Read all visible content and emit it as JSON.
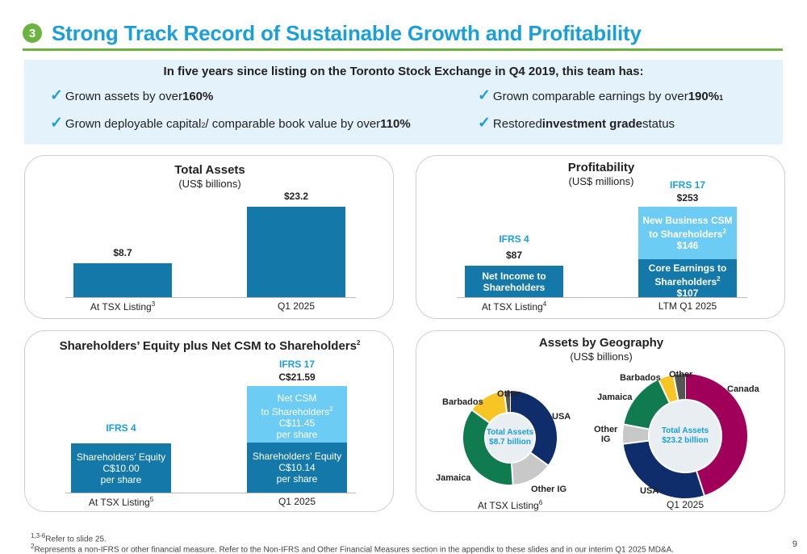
{
  "slide": {
    "number": "3",
    "title": "Strong Track Record of Sustainable Growth and Profitability",
    "page_number": "9"
  },
  "summary": {
    "headline": "In five years since listing on the Toronto Stock Exchange in Q4 2019, this team has:",
    "bullets": [
      {
        "pre": "Grown assets by over ",
        "bold": "160%",
        "post": ""
      },
      {
        "pre": "Grown comparable earnings by over ",
        "bold": "190%",
        "post": "",
        "sup": "1"
      },
      {
        "pre": "Grown deployable capital",
        "sup_mid": "2",
        "mid": " / comparable book value by over ",
        "bold": "110%",
        "post": ""
      },
      {
        "pre": "Restored ",
        "bold": "investment grade",
        "post": " status"
      }
    ]
  },
  "total_assets": {
    "title": "Total Assets",
    "subtitle": "(US$ billions)",
    "chart_data": {
      "type": "bar",
      "categories": [
        "At TSX Listing",
        "Q1 2025"
      ],
      "category_sups": [
        "3",
        ""
      ],
      "values": [
        8.7,
        23.2
      ],
      "value_labels": [
        "$8.7",
        "$23.2"
      ],
      "ylim": [
        0,
        23.2
      ]
    },
    "colors": {
      "bar": "#1479a8"
    }
  },
  "profitability": {
    "title": "Profitability",
    "subtitle": "(US$ millions)",
    "ifrs4_label": "IFRS 4",
    "ifrs17_label": "IFRS 17",
    "chart_data": {
      "type": "bar",
      "stacked": true,
      "categories": [
        "At TSX Listing",
        "LTM Q1 2025"
      ],
      "category_sups": [
        "4",
        ""
      ],
      "totals": [
        87,
        253
      ],
      "total_labels": [
        "$87",
        "$253"
      ],
      "series": [
        {
          "name": "Net Income to Shareholders",
          "values": [
            87,
            null
          ]
        },
        {
          "name": "Core Earnings to Shareholders",
          "sup": "2",
          "values": [
            null,
            107
          ],
          "value_label": "$107"
        },
        {
          "name": "New Business CSM to Shareholders",
          "sup": "2",
          "values": [
            null,
            146
          ],
          "value_label": "$146"
        }
      ],
      "ylim": [
        0,
        253
      ]
    },
    "colors": {
      "dark": "#1479a8",
      "light": "#6dccf4"
    }
  },
  "equity": {
    "title": "Shareholders’ Equity plus Net CSM to Shareholders",
    "title_sup": "2",
    "ifrs4_label": "IFRS 4",
    "ifrs17_label": "IFRS 17",
    "chart_data": {
      "type": "bar",
      "stacked": true,
      "categories": [
        "At TSX Listing",
        "Q1 2025"
      ],
      "category_sups": [
        "5",
        ""
      ],
      "totals": [
        10.0,
        21.59
      ],
      "total_labels": [
        "",
        "C$21.59"
      ],
      "series": [
        {
          "name": "Shareholders' Equity",
          "values": [
            10.0,
            10.14
          ],
          "value_labels": [
            "C$10.00",
            "C$10.14"
          ],
          "unit": "per share"
        },
        {
          "name": "Net CSM to Shareholders",
          "sup": "2",
          "values": [
            null,
            11.45
          ],
          "value_labels": [
            "",
            "C$11.45"
          ],
          "unit": "per share"
        }
      ],
      "ylim": [
        0,
        21.59
      ]
    },
    "colors": {
      "dark": "#1479a8",
      "light": "#6dccf4"
    }
  },
  "geography": {
    "title": "Assets by Geography",
    "subtitle": "(US$ billions)",
    "chart_data": [
      {
        "type": "pie",
        "category": "At TSX Listing",
        "category_sup": "6",
        "center_label": [
          "Total Assets",
          "$8.7 billion"
        ],
        "slices": [
          {
            "name": "USA",
            "value": 35
          },
          {
            "name": "Other IG",
            "value": 14
          },
          {
            "name": "Jamaica",
            "value": 36
          },
          {
            "name": "Barbados",
            "value": 13
          },
          {
            "name": "Other",
            "value": 2
          }
        ]
      },
      {
        "type": "pie",
        "category": "Q1 2025",
        "center_label": [
          "Total Assets",
          "$23.2 billion"
        ],
        "slices": [
          {
            "name": "Canada",
            "value": 45
          },
          {
            "name": "USA",
            "value": 28
          },
          {
            "name": "Other IG",
            "value": 5
          },
          {
            "name": "Jamaica",
            "value": 15
          },
          {
            "name": "Barbados",
            "value": 4
          },
          {
            "name": "Other",
            "value": 3
          }
        ]
      }
    ],
    "colors": {
      "USA": "#0f2d6b",
      "Other IG": "#c8c8c8",
      "Jamaica": "#0f7b4f",
      "Barbados": "#f7c625",
      "Other": "#555555",
      "Canada": "#a0005a"
    }
  },
  "footnotes": {
    "line1_sup": "1,3-6",
    "line1": "Refer to slide 25.",
    "line2_sup": "2",
    "line2": "Represents a non-IFRS or other financial measure. Refer to the Non-IFRS and Other Financial Measures section in the appendix to these slides and in our interim Q1 2025 MD&A."
  }
}
